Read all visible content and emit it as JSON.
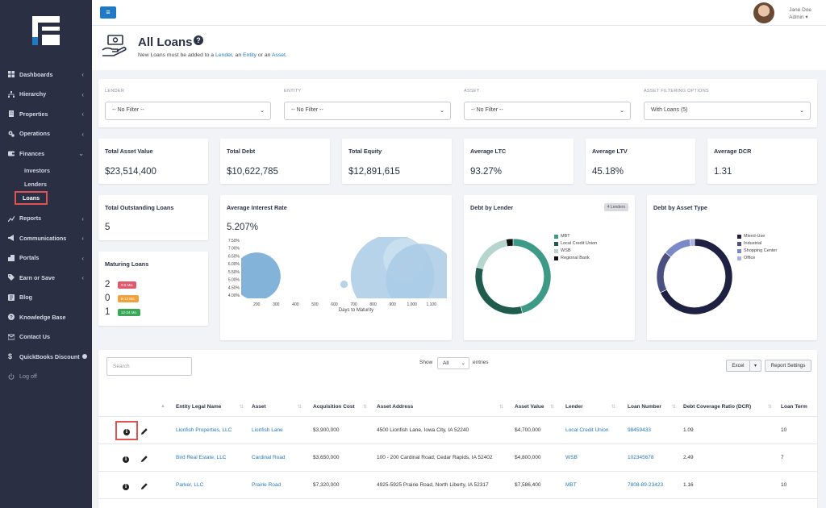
{
  "sidebar": {
    "items": [
      {
        "label": "Dashboards",
        "icon": "grid-icon",
        "chevron": true
      },
      {
        "label": "Hierarchy",
        "icon": "hierarchy-icon",
        "chevron": true
      },
      {
        "label": "Properties",
        "icon": "building-icon",
        "chevron": true
      },
      {
        "label": "Operations",
        "icon": "cogs-icon",
        "chevron": true
      },
      {
        "label": "Finances",
        "icon": "wallet-icon",
        "chevron": true
      }
    ],
    "sub_items": [
      {
        "label": "Investors"
      },
      {
        "label": "Lenders"
      },
      {
        "label": "Loans"
      }
    ],
    "items2": [
      {
        "label": "Reports",
        "icon": "chart-icon"
      },
      {
        "label": "Communications",
        "icon": "megaphone-icon"
      },
      {
        "label": "Portals",
        "icon": "portal-icon"
      },
      {
        "label": "Earn or Save",
        "icon": "tag-icon"
      },
      {
        "label": "Blog",
        "icon": "blog-icon"
      },
      {
        "label": "Knowledge Base",
        "icon": "question-icon"
      },
      {
        "label": "Contact Us",
        "icon": "envelope-icon"
      },
      {
        "label": "QuickBooks Discount",
        "icon": "dollar-icon"
      },
      {
        "label": "Log off",
        "icon": "power-icon"
      }
    ]
  },
  "topbar": {
    "menu_icon": "≡",
    "user_name": "Jane Doe",
    "user_role": "Admin ▾"
  },
  "header": {
    "title": "All Loans",
    "subtitle_pre": "New Loans must be added to a ",
    "link_lender": "Lender",
    "sep1": ", an ",
    "link_entity": "Entity",
    "sep2": " or an ",
    "link_asset": "Asset",
    "end": "."
  },
  "filters": [
    {
      "label": "LENDER",
      "value": "-- No Filter --"
    },
    {
      "label": "ENTITY",
      "value": "-- No Filter --"
    },
    {
      "label": "ASSET",
      "value": "-- No Filter --"
    },
    {
      "label": "ASSET FILTERING OPTIONS",
      "value": "With Loans (5)"
    }
  ],
  "stats": [
    {
      "title": "Total Asset Value",
      "value": "$23,514,400"
    },
    {
      "title": "Total Debt",
      "value": "$10,622,785"
    },
    {
      "title": "Total Equity",
      "value": "$12,891,615"
    },
    {
      "title": "Average LTC",
      "value": "93.27%"
    },
    {
      "title": "Average LTV",
      "value": "45.18%"
    },
    {
      "title": "Average DCR",
      "value": "1.31"
    }
  ],
  "outstanding": {
    "title": "Total Outstanding Loans",
    "value": "5"
  },
  "maturing": {
    "title": "Maturing Loans",
    "rows": [
      {
        "count": "2",
        "badge": "0-6 Mo.",
        "color": "#e05a6e"
      },
      {
        "count": "0",
        "badge": "6-12 Mo.",
        "color": "#f2a23a"
      },
      {
        "count": "1",
        "badge": "12-24 Mo.",
        "color": "#3aa857"
      }
    ]
  },
  "interest": {
    "title": "Average Interest Rate",
    "value": "5.207%",
    "y_ticks": [
      "7.50%",
      "7.00%",
      "6.50%",
      "6.00%",
      "5.50%",
      "5.00%",
      "4.50%",
      "4.00%"
    ],
    "x_ticks": [
      "200",
      "300",
      "400",
      "500",
      "600",
      "700",
      "800",
      "900",
      "1,000",
      "1,100"
    ],
    "xlabel": "Days to Maturity"
  },
  "chart_data": [
    {
      "type": "scatter",
      "title": "Average Interest Rate",
      "xlabel": "Days to Maturity",
      "ylabel": "",
      "xlim": [
        120,
        1180
      ],
      "ylim": [
        3.8,
        7.6
      ],
      "points": [
        {
          "x": 200,
          "y": 5.2,
          "r": 1.6
        },
        {
          "x": 650,
          "y": 4.7,
          "r": 0.25
        },
        {
          "x": 900,
          "y": 5.2,
          "r": 2.8
        },
        {
          "x": 960,
          "y": 6.3,
          "r": 1.4
        },
        {
          "x": 1050,
          "y": 5.0,
          "r": 2.4
        }
      ]
    },
    {
      "type": "pie",
      "title": "Debt by Lender",
      "badge": "4 Lenders",
      "series": [
        {
          "name": "MBT",
          "value": 46,
          "color": "#3d9a86"
        },
        {
          "name": "Local Credit Union",
          "value": 33,
          "color": "#1f5c4e"
        },
        {
          "name": "WSB",
          "value": 18,
          "color": "#b6d5cd"
        },
        {
          "name": "Regional Bank",
          "value": 3,
          "color": "#111111"
        }
      ]
    },
    {
      "type": "pie",
      "title": "Debt by Asset Type",
      "series": [
        {
          "name": "Mixed-Use",
          "value": 68,
          "color": "#1e2142"
        },
        {
          "name": "Industrial",
          "value": 18,
          "color": "#4a5180"
        },
        {
          "name": "Shopping Center",
          "value": 12,
          "color": "#7c89c7"
        },
        {
          "name": "Office",
          "value": 2,
          "color": "#a8b4e4"
        }
      ]
    }
  ],
  "table": {
    "search_placeholder": "Search",
    "show_label": "Show",
    "show_value": "All",
    "entries_label": "entries",
    "excel": "Excel",
    "report_settings": "Report Settings",
    "columns": [
      "Entity Legal Name",
      "Asset",
      "Acquisition Cost",
      "Asset Address",
      "Asset Value",
      "Lender",
      "Loan Number",
      "Debt Coverage Ratio (DCR)",
      "Loan Term"
    ],
    "rows": [
      {
        "entity": "Lionfish Properties, LLC",
        "asset": "Lionfish Lane",
        "cost": "$3,900,000",
        "address": "4500 Lionfish Lane, Iowa City, IA 52240",
        "value": "$4,700,000",
        "lender": "Local Credit Union",
        "loan": "98459433",
        "dcr": "1.09",
        "term": "10"
      },
      {
        "entity": "Bird Real Estate, LLC",
        "asset": "Cardinal Road",
        "cost": "$3,650,000",
        "address": "100 - 200 Cardinal Road, Cedar Rapids, IA 52402",
        "value": "$4,800,000",
        "lender": "WSB",
        "loan": "102345678",
        "dcr": "2.49",
        "term": "7"
      },
      {
        "entity": "Parker, LLC",
        "asset": "Prairie Road",
        "cost": "$7,320,000",
        "address": "4925-5925 Prairie Road, North Liberty, IA 52317",
        "value": "$7,586,400",
        "lender": "MBT",
        "loan": "7808-89-23423",
        "dcr": "1.16",
        "term": "10"
      }
    ]
  }
}
